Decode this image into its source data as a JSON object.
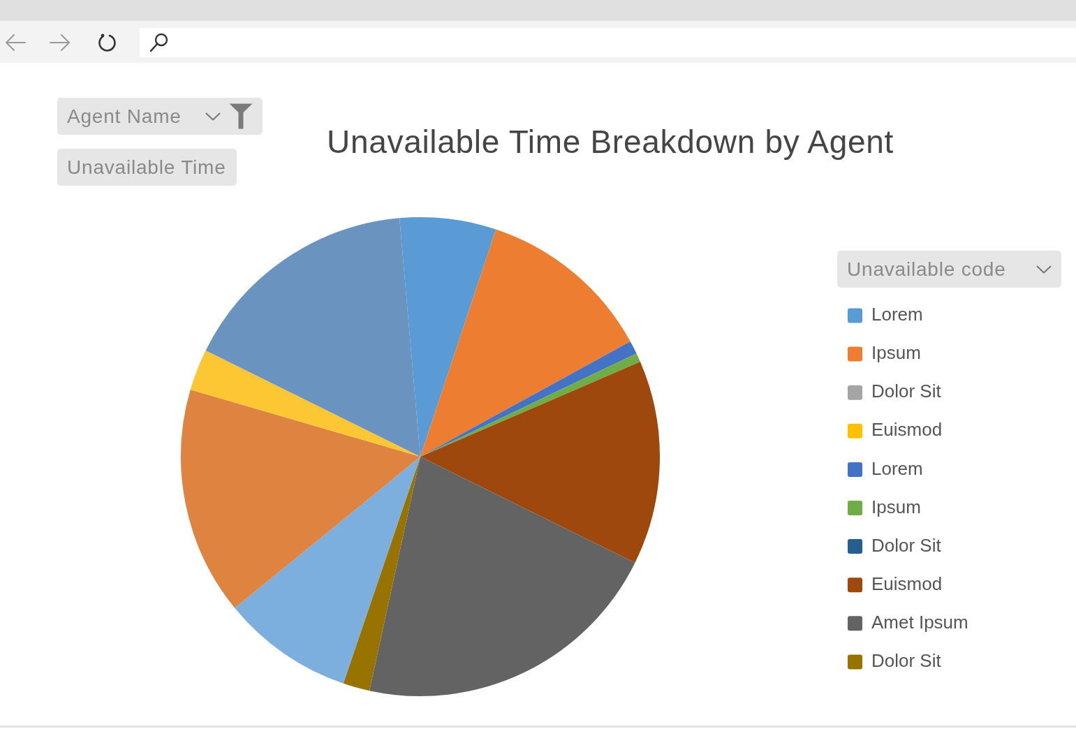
{
  "chart_data": {
    "type": "pie",
    "title": "Unavailable Time Breakdown by Agent",
    "legend_title": "Unavailable code",
    "annotations": [
      "Agent Name",
      "Unavailable Time"
    ],
    "categories": [
      "Lorem",
      "Ipsum",
      "Dolor Sit",
      "Euismod",
      "Lorem",
      "Ipsum",
      "Dolor Sit",
      "Euismod",
      "Amet Ipsum",
      "Dolor Sit",
      null,
      null,
      null,
      null
    ],
    "values": [
      6.5,
      11.9,
      0,
      0,
      0.9,
      0.6,
      0,
      13.8,
      21.1,
      1.8,
      8.9,
      15.4,
      2.8,
      16.3
    ],
    "colors": [
      "#5b9bd5",
      "#ed7d31",
      "#a5a5a5",
      "#ffc000",
      "#4472c4",
      "#70ad47",
      "#255e91",
      "#9e480e",
      "#636363",
      "#997300",
      "#7cafdd",
      "#de8340",
      "#fdc734",
      "#6a93bf"
    ],
    "legend": "right"
  }
}
